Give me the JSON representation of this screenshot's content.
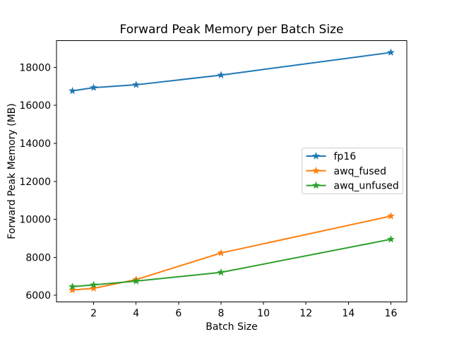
{
  "figure": {
    "background": "#ffffff"
  },
  "chart_data": {
    "type": "line",
    "title": "Forward Peak Memory per Batch Size",
    "xlabel": "Batch Size",
    "ylabel": "Forward Peak Memory (MB)",
    "x": [
      1,
      2,
      4,
      8,
      16
    ],
    "series": [
      {
        "name": "fp16",
        "color": "#1f77b4",
        "marker": "star",
        "values": [
          16760,
          16930,
          17080,
          17590,
          18780
        ]
      },
      {
        "name": "awq_fused",
        "color": "#ff7f0e",
        "marker": "star",
        "values": [
          6280,
          6370,
          6830,
          8230,
          10170
        ]
      },
      {
        "name": "awq_unfused",
        "color": "#2ca02c",
        "marker": "star",
        "values": [
          6460,
          6550,
          6750,
          7210,
          8950
        ]
      }
    ],
    "xlim": [
      0.25,
      16.75
    ],
    "ylim": [
      5655,
      19405
    ],
    "xticks": [
      2,
      4,
      6,
      8,
      10,
      12,
      14,
      16
    ],
    "yticks": [
      6000,
      8000,
      10000,
      12000,
      14000,
      16000,
      18000
    ],
    "grid": false,
    "legend": {
      "position": "center-right",
      "entries": [
        "fp16",
        "awq_fused",
        "awq_unfused"
      ]
    }
  },
  "colors": {
    "text": "#000000",
    "spine": "#000000",
    "legend_border": "#cccccc",
    "legend_background": "#ffffff"
  }
}
